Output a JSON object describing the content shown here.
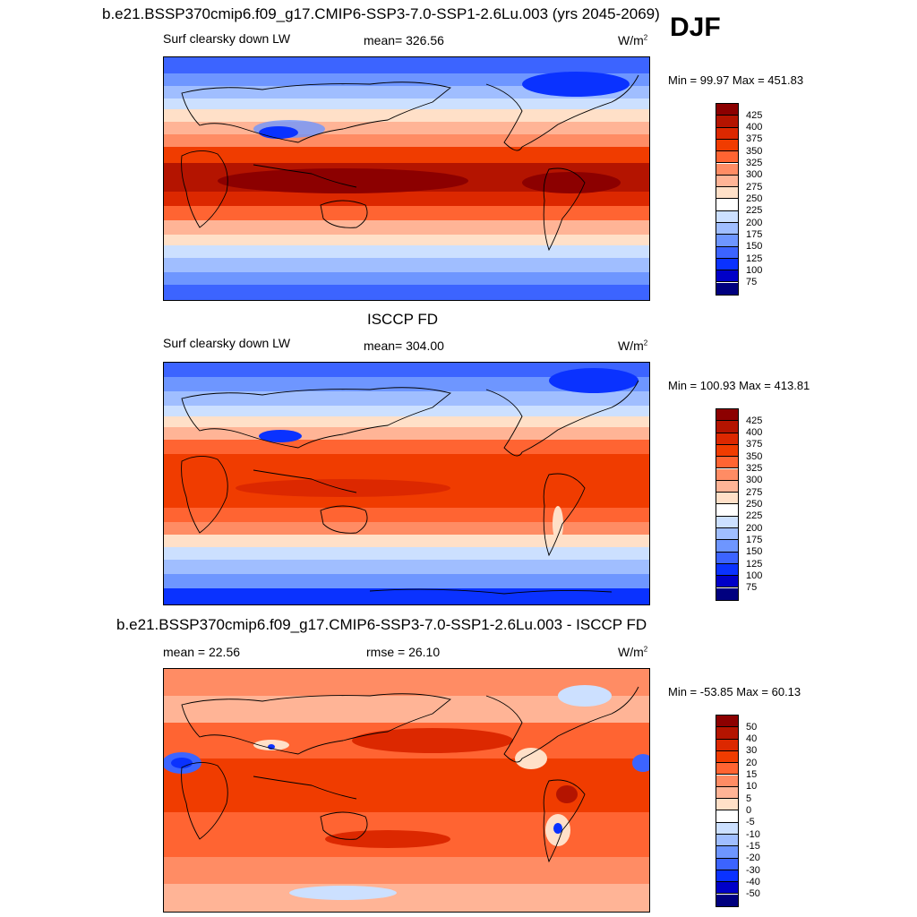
{
  "season": "DJF",
  "palette_levels": [
    "#00007f",
    "#0000c8",
    "#0a32ff",
    "#3c64ff",
    "#6e96ff",
    "#a0beff",
    "#cce0ff",
    "#ffffff",
    "#ffe0c8",
    "#ffb496",
    "#ff8c64",
    "#ff6432",
    "#f03c00",
    "#dc2800",
    "#b41400",
    "#8c0000"
  ],
  "panels": [
    {
      "title": "b.e21.BSSP370cmip6.f09_g17.CMIP6-SSP3-7.0-SSP1-2.6Lu.003 (yrs 2045-2069)",
      "left_label": "Surf clearsky down LW",
      "center_label": "mean= 326.56",
      "units": "W/m",
      "units_sup": "2",
      "minmax": "Min =  99.97 Max = 451.83",
      "colorbar_labels": [
        "425",
        "400",
        "375",
        "350",
        "325",
        "300",
        "275",
        "250",
        "225",
        "200",
        "175",
        "150",
        "125",
        "100",
        "75"
      ]
    },
    {
      "title": "ISCCP FD",
      "left_label": "Surf clearsky down LW",
      "center_label": "mean= 304.00",
      "units": "W/m",
      "units_sup": "2",
      "minmax": "Min = 100.93 Max = 413.81",
      "colorbar_labels": [
        "425",
        "400",
        "375",
        "350",
        "325",
        "300",
        "275",
        "250",
        "225",
        "200",
        "175",
        "150",
        "125",
        "100",
        "75"
      ]
    },
    {
      "title": "b.e21.BSSP370cmip6.f09_g17.CMIP6-SSP3-7.0-SSP1-2.6Lu.003 - ISCCP FD",
      "left_label": "mean =  22.56",
      "center_label": "rmse =  26.10",
      "units": "W/m",
      "units_sup": "2",
      "minmax": "Min = -53.85 Max =  60.13",
      "colorbar_labels": [
        "50",
        "40",
        "30",
        "20",
        "15",
        "10",
        "5",
        "0",
        "-5",
        "-10",
        "-15",
        "-20",
        "-30",
        "-40",
        "-50"
      ]
    }
  ]
}
